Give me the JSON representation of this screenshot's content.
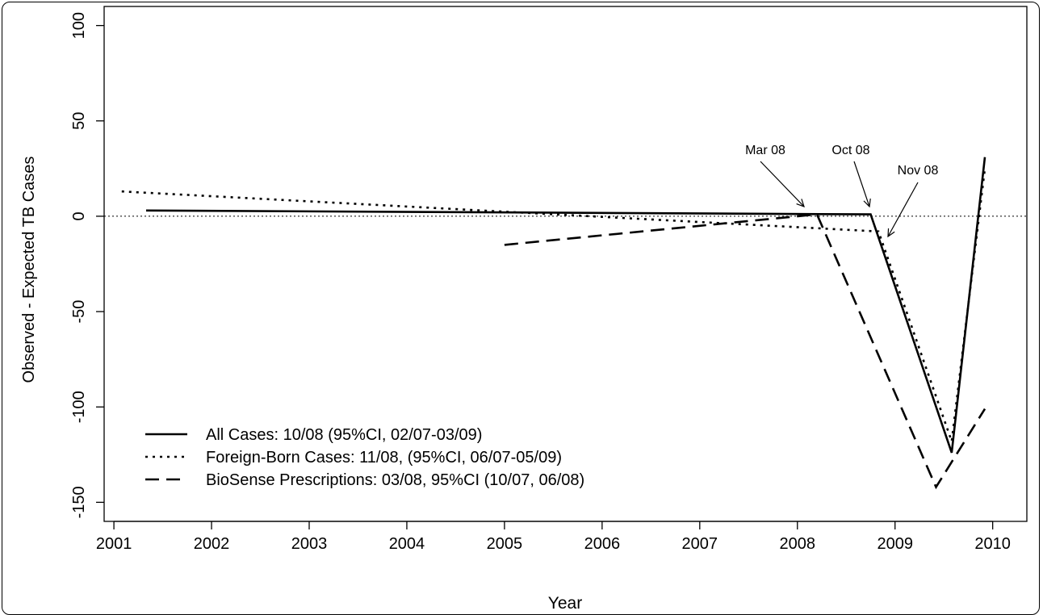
{
  "chart_data": {
    "type": "line",
    "xlabel": "Year",
    "ylabel": "Observed - Expected TB Cases",
    "xlim": [
      2000.9,
      2010.35
    ],
    "ylim": [
      -160,
      110
    ],
    "x_ticks": [
      2001,
      2002,
      2003,
      2004,
      2005,
      2006,
      2007,
      2008,
      2009,
      2010
    ],
    "y_ticks": [
      -150,
      -100,
      -50,
      0,
      50,
      100
    ],
    "reference_line": {
      "y": 0,
      "style": "dotted"
    },
    "grid": false,
    "legend_position": "bottom-left",
    "series": [
      {
        "name": "All Cases: 10/08 (95%CI, 02/07-03/09)",
        "line_style": "solid",
        "x": [
          2001.33,
          2008.75,
          2009.58,
          2009.92
        ],
        "y": [
          3,
          1,
          -124,
          31
        ]
      },
      {
        "name": "Foreign-Born Cases: 11/08, (95%CI, 06/07-05/09)",
        "line_style": "dotted",
        "x": [
          2001.08,
          2008.83,
          2009.58,
          2009.92
        ],
        "y": [
          13,
          -8,
          -118,
          25
        ]
      },
      {
        "name": "BioSense Prescriptions: 03/08, 95%CI (10/07, 06/08)",
        "line_style": "dashed",
        "x": [
          2005.0,
          2008.2,
          2009.42,
          2009.92
        ],
        "y": [
          -15,
          1,
          -142,
          -101
        ]
      }
    ],
    "annotations": [
      {
        "text": "Mar 08",
        "x": 2008.02,
        "y": 8
      },
      {
        "text": "Oct 08",
        "x": 2008.7,
        "y": 8
      },
      {
        "text": "Nov 08",
        "x": 2008.9,
        "y": -7
      }
    ]
  }
}
